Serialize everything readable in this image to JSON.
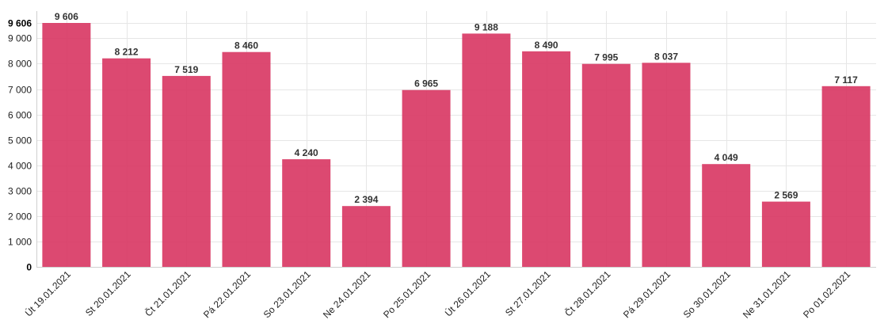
{
  "chart_data": {
    "type": "bar",
    "categories": [
      "Út 19.01.2021",
      "St 20.01.2021",
      "Čt 21.01.2021",
      "Pá 22.01.2021",
      "So 23.01.2021",
      "Ne 24.01.2021",
      "Po 25.01.2021",
      "Út 26.01.2021",
      "St 27.01.2021",
      "Čt 28.01.2021",
      "Pá 29.01.2021",
      "So 30.01.2021",
      "Ne 31.01.2021",
      "Po 01.02.2021"
    ],
    "values": [
      9606,
      8212,
      7519,
      8460,
      4240,
      2394,
      6965,
      9188,
      8490,
      7995,
      8037,
      4049,
      2569,
      7117
    ],
    "value_labels": [
      "9 606",
      "8 212",
      "7 519",
      "8 460",
      "4 240",
      "2 394",
      "6 965",
      "9 188",
      "8 490",
      "7 995",
      "8 037",
      "4 049",
      "2 569",
      "7 117"
    ],
    "y_ticks": [
      0,
      1000,
      2000,
      3000,
      4000,
      5000,
      6000,
      7000,
      8000,
      9000
    ],
    "y_tick_labels": [
      "0",
      "1 000",
      "2 000",
      "3 000",
      "4 000",
      "5 000",
      "6 000",
      "7 000",
      "8 000",
      "9 000"
    ],
    "y_max_label": "9 606",
    "ylim": [
      0,
      9606
    ],
    "title": "",
    "xlabel": "",
    "ylabel": "",
    "grid": true,
    "legend": "none",
    "bar_color": "#d93a65"
  }
}
